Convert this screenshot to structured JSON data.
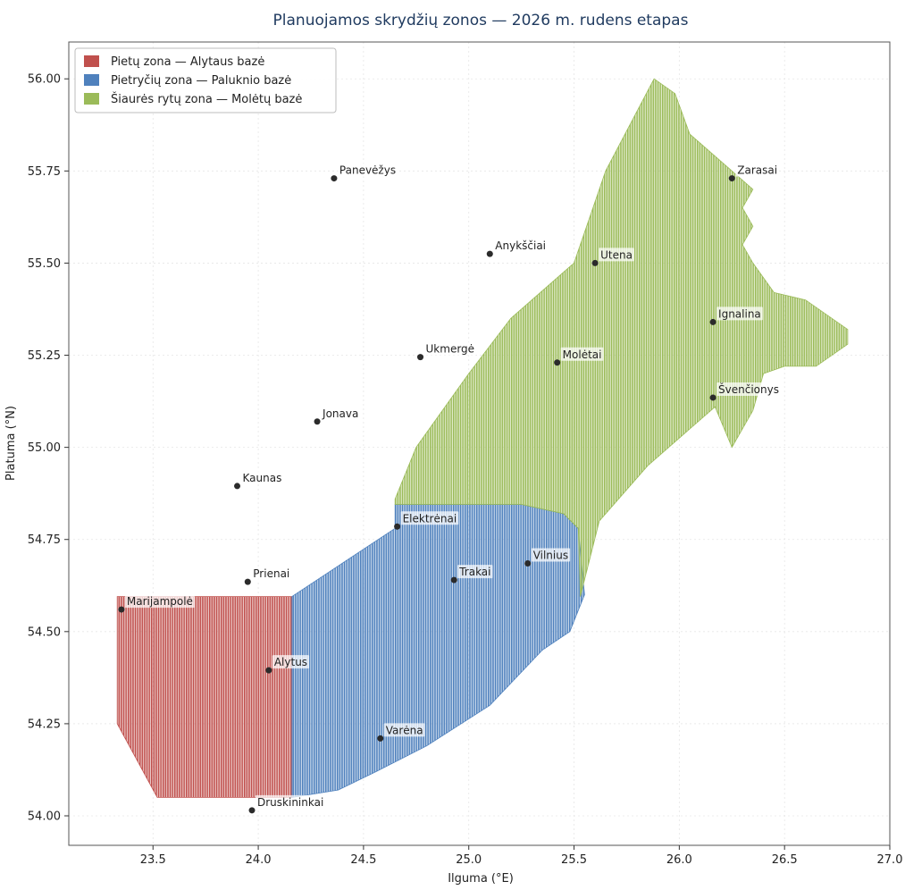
{
  "chart_data": {
    "type": "map",
    "title": "Planuojamos skrydžių zonos — 2026 m. rudens etapas",
    "xlabel": "Ilguma (°E)",
    "ylabel": "Platuma (°N)",
    "xlim": [
      23.1,
      27.0
    ],
    "ylim": [
      53.92,
      56.1
    ],
    "xticks": [
      "23.5",
      "24.0",
      "24.5",
      "25.0",
      "25.5",
      "26.0",
      "26.5",
      "27.0"
    ],
    "yticks": [
      "54.00",
      "54.25",
      "54.50",
      "54.75",
      "55.00",
      "55.25",
      "55.50",
      "55.75",
      "56.00"
    ],
    "grid": true,
    "legend_position": "top-left",
    "zones": [
      {
        "name": "Pietų zona — Alytaus bazė",
        "color": "#c0504d",
        "polygon": [
          [
            23.33,
            54.595
          ],
          [
            24.16,
            54.595
          ],
          [
            24.16,
            54.05
          ],
          [
            23.52,
            54.05
          ],
          [
            23.33,
            54.25
          ]
        ]
      },
      {
        "name": "Pietryčių zona — Paluknio bazė",
        "color": "#4f81bd",
        "polygon": [
          [
            24.16,
            54.595
          ],
          [
            24.65,
            54.78
          ],
          [
            24.65,
            54.845
          ],
          [
            25.25,
            54.845
          ],
          [
            25.45,
            54.82
          ],
          [
            25.52,
            54.78
          ],
          [
            25.55,
            54.6
          ],
          [
            25.48,
            54.5
          ],
          [
            25.35,
            54.45
          ],
          [
            25.1,
            54.3
          ],
          [
            24.8,
            54.19
          ],
          [
            24.56,
            54.12
          ],
          [
            24.38,
            54.07
          ],
          [
            24.16,
            54.05
          ]
        ]
      },
      {
        "name": "Šiaurės rytų zona — Molėtų bazė",
        "color": "#9bbb59",
        "polygon": [
          [
            24.65,
            54.845
          ],
          [
            25.25,
            54.845
          ],
          [
            25.45,
            54.82
          ],
          [
            25.52,
            54.78
          ],
          [
            25.53,
            54.595
          ],
          [
            25.62,
            54.8
          ],
          [
            25.85,
            54.95
          ],
          [
            26.05,
            55.05
          ],
          [
            26.17,
            55.11
          ],
          [
            26.25,
            55.0
          ],
          [
            26.35,
            55.1
          ],
          [
            26.4,
            55.2
          ],
          [
            26.5,
            55.22
          ],
          [
            26.65,
            55.22
          ],
          [
            26.8,
            55.28
          ],
          [
            26.8,
            55.32
          ],
          [
            26.6,
            55.4
          ],
          [
            26.45,
            55.42
          ],
          [
            26.35,
            55.5
          ],
          [
            26.3,
            55.55
          ],
          [
            26.35,
            55.6
          ],
          [
            26.3,
            55.65
          ],
          [
            26.35,
            55.7
          ],
          [
            26.25,
            55.75
          ],
          [
            26.05,
            55.85
          ],
          [
            25.98,
            55.96
          ],
          [
            25.88,
            56.0
          ],
          [
            25.65,
            55.75
          ],
          [
            25.5,
            55.5
          ],
          [
            25.2,
            55.35
          ],
          [
            25.0,
            55.2
          ],
          [
            24.75,
            55.0
          ],
          [
            24.65,
            54.86
          ]
        ]
      }
    ],
    "cities": [
      {
        "name": "Panevėžys",
        "lon": 24.36,
        "lat": 55.73
      },
      {
        "name": "Zarasai",
        "lon": 26.25,
        "lat": 55.73
      },
      {
        "name": "Anykščiai",
        "lon": 25.1,
        "lat": 55.525
      },
      {
        "name": "Utena",
        "lon": 25.6,
        "lat": 55.5
      },
      {
        "name": "Ignalina",
        "lon": 26.16,
        "lat": 55.34
      },
      {
        "name": "Ukmergė",
        "lon": 24.77,
        "lat": 55.245
      },
      {
        "name": "Molėtai",
        "lon": 25.42,
        "lat": 55.23
      },
      {
        "name": "Švenčionys",
        "lon": 26.16,
        "lat": 55.135
      },
      {
        "name": "Jonava",
        "lon": 24.28,
        "lat": 55.07
      },
      {
        "name": "Kaunas",
        "lon": 23.9,
        "lat": 54.895
      },
      {
        "name": "Elektrėnai",
        "lon": 24.66,
        "lat": 54.785
      },
      {
        "name": "Vilnius",
        "lon": 25.28,
        "lat": 54.685
      },
      {
        "name": "Trakai",
        "lon": 24.93,
        "lat": 54.64
      },
      {
        "name": "Prienai",
        "lon": 23.95,
        "lat": 54.635
      },
      {
        "name": "Marijampolė",
        "lon": 23.35,
        "lat": 54.56
      },
      {
        "name": "Alytus",
        "lon": 24.05,
        "lat": 54.395
      },
      {
        "name": "Varėna",
        "lon": 24.58,
        "lat": 54.21
      },
      {
        "name": "Druskininkai",
        "lon": 23.97,
        "lat": 54.015
      }
    ]
  }
}
